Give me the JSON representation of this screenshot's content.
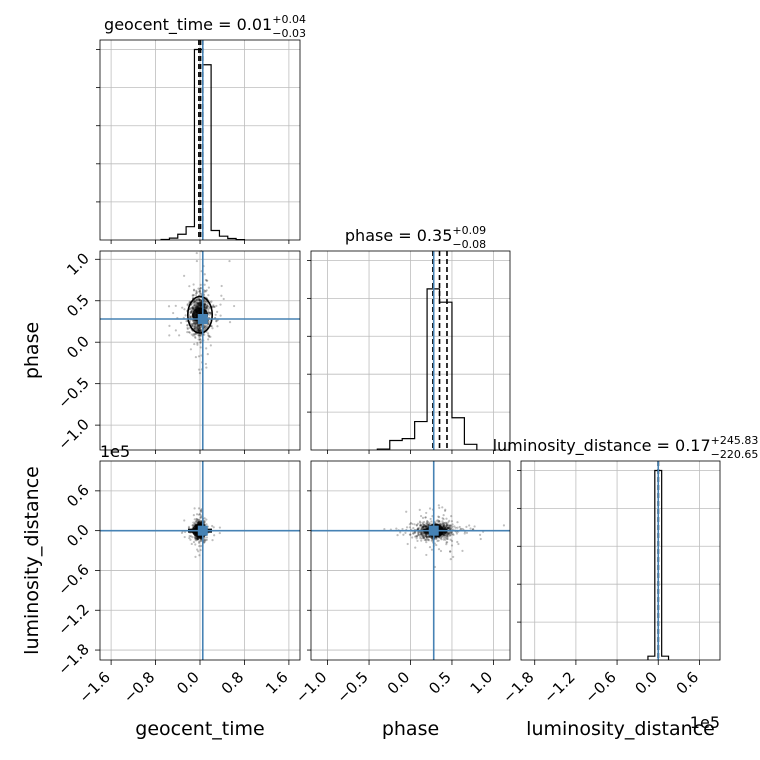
{
  "chart_data": {
    "type": "corner",
    "parameters": [
      "geocent_time",
      "phase",
      "luminosity_distance"
    ],
    "truth": {
      "geocent_time": 0.05,
      "phase": 0.28,
      "luminosity_distance": 0.0
    },
    "panels": [
      {
        "id": "hist-geocent_time",
        "type": "histogram",
        "title": {
          "main": "geocent_time = 0.01",
          "sup": "+0.04",
          "sub": "−0.03"
        },
        "xlim": [
          -1.8,
          1.8
        ],
        "bin_edges": [
          -0.7,
          -0.55,
          -0.4,
          -0.25,
          -0.1,
          0.05,
          0.2,
          0.35,
          0.5,
          0.65,
          0.8
        ],
        "counts": [
          0.003,
          0.01,
          0.03,
          0.07,
          1.0,
          0.92,
          0.05,
          0.02,
          0.008,
          0.002
        ],
        "quantile_lines": [
          -0.02,
          0.01,
          0.05
        ],
        "truth_line": 0.05,
        "xticks": [
          -1.6,
          -0.8,
          0.0,
          0.8,
          1.6
        ]
      },
      {
        "id": "hist-phase",
        "type": "histogram",
        "title": {
          "main": "phase = 0.35",
          "sup": "+0.09",
          "sub": "−0.08"
        },
        "xlim": [
          -1.2,
          1.2
        ],
        "bin_edges": [
          -0.4,
          -0.25,
          -0.1,
          0.05,
          0.2,
          0.35,
          0.5,
          0.65,
          0.8
        ],
        "counts": [
          0.005,
          0.05,
          0.06,
          0.15,
          0.85,
          0.78,
          0.17,
          0.03
        ],
        "quantile_lines": [
          0.27,
          0.35,
          0.44
        ],
        "truth_line": 0.28,
        "xticks": [
          -1.0,
          -0.5,
          0.0,
          0.5,
          1.0
        ]
      },
      {
        "id": "hist-luminosity_distance",
        "type": "histogram",
        "title": {
          "main": "luminosity_distance = 0.17",
          "sup": "+245.83",
          "sub": "−220.65"
        },
        "xlim": [
          -2.0,
          0.9
        ],
        "x_scale_label": "1e5",
        "bin_edges": [
          -0.15,
          -0.05,
          0.05,
          0.15
        ],
        "counts": [
          0.02,
          1.0,
          0.02
        ],
        "quantile_lines": [
          -0.002,
          0.0,
          0.002
        ],
        "truth_line": 0.0,
        "xticks": [
          -1.8,
          -1.2,
          -0.6,
          0.0,
          0.6
        ]
      },
      {
        "id": "scatter-phase-vs-geocent_time",
        "type": "density2d",
        "xlim": [
          -1.8,
          1.8
        ],
        "ylim": [
          -1.3,
          1.1
        ],
        "center": [
          0.0,
          0.33
        ],
        "spread": [
          0.09,
          0.12
        ],
        "truth": [
          0.05,
          0.28
        ],
        "contour": {
          "rx": 0.22,
          "ry": 0.22
        },
        "yticks": [
          -1.0,
          -0.5,
          0.0,
          0.5,
          1.0
        ]
      },
      {
        "id": "scatter-luminosity_distance-vs-geocent_time",
        "type": "density2d",
        "xlim": [
          -1.8,
          1.8
        ],
        "ylim": [
          -1.95,
          1.05
        ],
        "y_scale_label": "1e5",
        "center": [
          0.0,
          0.0
        ],
        "spread": [
          0.05,
          0.06
        ],
        "truth": [
          0.05,
          0.0
        ],
        "yticks": [
          -1.8,
          -1.2,
          -0.6,
          0.0,
          0.6
        ]
      },
      {
        "id": "scatter-luminosity_distance-vs-phase",
        "type": "density2d",
        "xlim": [
          -1.2,
          1.2
        ],
        "ylim": [
          -1.95,
          1.05
        ],
        "center": [
          0.3,
          0.0
        ],
        "spread": [
          0.1,
          0.06
        ],
        "truth": [
          0.28,
          0.0
        ]
      }
    ],
    "axis_labels": {
      "x": [
        "geocent_time",
        "phase",
        "luminosity_distance"
      ],
      "y": [
        "phase",
        "luminosity_distance"
      ]
    },
    "colors": {
      "truth": "#4682b4",
      "hist": "#000000",
      "grid": "#bdbdbd",
      "points": "#000000"
    }
  }
}
